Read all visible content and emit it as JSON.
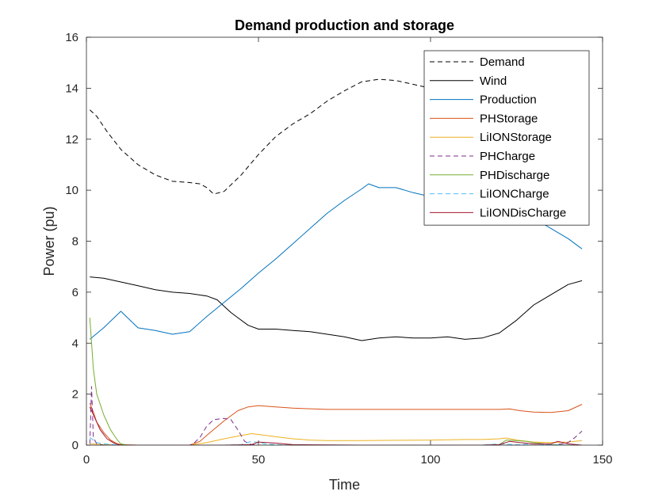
{
  "chart_data": {
    "type": "line",
    "title": "Demand production and storage",
    "xlabel": "Time",
    "ylabel": "Power (pu)",
    "xlim": [
      0,
      150
    ],
    "ylim": [
      0,
      16
    ],
    "xticks": [
      0,
      50,
      100,
      150
    ],
    "yticks": [
      0,
      2,
      4,
      6,
      8,
      10,
      12,
      14,
      16
    ],
    "grid": false,
    "legend_position": "top-right",
    "series": [
      {
        "name": "Demand",
        "color": "#000000",
        "dash": "dashed",
        "x": [
          1,
          3,
          6,
          10,
          15,
          20,
          25,
          30,
          33,
          35,
          37,
          40,
          45,
          50,
          55,
          60,
          65,
          70,
          75,
          80,
          85,
          90,
          95,
          100,
          105,
          110,
          115,
          120,
          125,
          130
        ],
        "y": [
          13.15,
          12.9,
          12.3,
          11.6,
          11.0,
          10.6,
          10.35,
          10.3,
          10.25,
          10.1,
          9.85,
          9.95,
          10.6,
          11.4,
          12.1,
          12.6,
          13.0,
          13.5,
          13.9,
          14.25,
          14.35,
          14.3,
          14.15,
          14.0,
          14.1,
          14.2,
          14.3,
          14.3,
          14.3,
          14.2
        ]
      },
      {
        "name": "Wind",
        "color": "#000000",
        "dash": "solid",
        "x": [
          1,
          5,
          10,
          15,
          20,
          25,
          30,
          35,
          38,
          40,
          42,
          44,
          47,
          50,
          55,
          60,
          65,
          70,
          75,
          80,
          85,
          90,
          95,
          100,
          105,
          110,
          115,
          120,
          125,
          130,
          135,
          140,
          144
        ],
        "y": [
          6.6,
          6.55,
          6.4,
          6.25,
          6.1,
          6.0,
          5.95,
          5.85,
          5.7,
          5.45,
          5.2,
          5.0,
          4.7,
          4.55,
          4.55,
          4.5,
          4.45,
          4.35,
          4.25,
          4.1,
          4.2,
          4.25,
          4.2,
          4.2,
          4.25,
          4.15,
          4.2,
          4.4,
          4.9,
          5.5,
          5.9,
          6.3,
          6.45
        ]
      },
      {
        "name": "Production",
        "color": "#0072BD",
        "dash": "solid",
        "x": [
          1,
          5,
          10,
          15,
          20,
          25,
          30,
          35,
          40,
          45,
          50,
          55,
          60,
          65,
          70,
          75,
          80,
          82,
          85,
          90,
          95,
          100,
          105,
          110,
          115,
          120,
          125,
          130,
          135,
          140,
          144
        ],
        "y": [
          4.15,
          4.6,
          5.25,
          4.6,
          4.5,
          4.35,
          4.45,
          5.05,
          5.6,
          6.15,
          6.75,
          7.3,
          7.9,
          8.5,
          9.1,
          9.6,
          10.05,
          10.25,
          10.1,
          10.1,
          9.9,
          9.75,
          9.7,
          9.65,
          9.6,
          9.55,
          9.3,
          8.9,
          8.5,
          8.1,
          7.7
        ]
      },
      {
        "name": "PHStorage",
        "color": "#D95319",
        "dash": "solid",
        "x": [
          1,
          2,
          3,
          5,
          7,
          9,
          10,
          15,
          20,
          25,
          30,
          33,
          36,
          40,
          44,
          47,
          50,
          55,
          60,
          70,
          80,
          90,
          100,
          110,
          120,
          123,
          126,
          130,
          135,
          140,
          144
        ],
        "y": [
          1.65,
          1.3,
          0.9,
          0.5,
          0.2,
          0.05,
          0.02,
          0.0,
          0.0,
          0.0,
          0.0,
          0.15,
          0.5,
          0.95,
          1.35,
          1.5,
          1.55,
          1.5,
          1.45,
          1.4,
          1.4,
          1.4,
          1.4,
          1.4,
          1.4,
          1.42,
          1.35,
          1.3,
          1.28,
          1.35,
          1.6
        ]
      },
      {
        "name": "LiIONStorage",
        "color": "#EDB120",
        "dash": "solid",
        "x": [
          1,
          5,
          10,
          20,
          30,
          35,
          40,
          45,
          48,
          50,
          55,
          60,
          65,
          70,
          80,
          90,
          100,
          110,
          115,
          120,
          122,
          125,
          130,
          135,
          140,
          144
        ],
        "y": [
          0.05,
          0.02,
          0.0,
          0.0,
          0.0,
          0.1,
          0.25,
          0.38,
          0.45,
          0.42,
          0.33,
          0.25,
          0.2,
          0.18,
          0.18,
          0.19,
          0.2,
          0.22,
          0.22,
          0.25,
          0.28,
          0.2,
          0.12,
          0.1,
          0.12,
          0.18
        ]
      },
      {
        "name": "PHCharge",
        "color": "#7E2F8E",
        "dash": "dashed",
        "x": [
          1,
          1.5,
          2,
          3,
          5,
          10,
          20,
          30,
          31,
          33,
          35,
          37,
          40,
          42,
          44,
          46,
          48,
          50,
          60,
          80,
          100,
          120,
          130,
          135,
          138,
          140,
          142,
          144
        ],
        "y": [
          0.05,
          2.3,
          0.3,
          0.05,
          0.0,
          0.0,
          0.0,
          0.0,
          0.05,
          0.3,
          0.75,
          1.0,
          1.05,
          1.0,
          0.6,
          0.15,
          0.02,
          0.0,
          0.0,
          0.0,
          0.0,
          0.0,
          0.0,
          0.0,
          0.05,
          0.1,
          0.3,
          0.55
        ]
      },
      {
        "name": "PHDischarge",
        "color": "#77AC30",
        "dash": "solid",
        "x": [
          1,
          2,
          3,
          4,
          5,
          6,
          7,
          8,
          9,
          10,
          12,
          20,
          30,
          40,
          50,
          80,
          100,
          115,
          120,
          122,
          125,
          128,
          130,
          135,
          140,
          144
        ],
        "y": [
          5.0,
          3.0,
          2.0,
          1.6,
          1.2,
          0.9,
          0.6,
          0.4,
          0.2,
          0.05,
          0.0,
          0.0,
          0.0,
          0.0,
          0.0,
          0.0,
          0.0,
          0.0,
          0.02,
          0.2,
          0.18,
          0.15,
          0.1,
          0.02,
          0.0,
          0.0
        ]
      },
      {
        "name": "LiIONCharge",
        "color": "#4DBEEE",
        "dash": "dashed",
        "x": [
          1,
          2,
          3,
          5,
          10,
          20,
          30,
          40,
          45,
          48,
          50,
          52,
          55,
          60,
          80,
          100,
          115,
          120,
          125,
          130,
          135,
          140,
          144
        ],
        "y": [
          0.3,
          0.2,
          0.1,
          0.05,
          0.0,
          0.0,
          0.0,
          0.0,
          0.02,
          0.15,
          0.1,
          0.05,
          0.02,
          0.0,
          0.0,
          0.0,
          0.0,
          0.05,
          0.02,
          0.05,
          0.02,
          0.0,
          0.0
        ]
      },
      {
        "name": "LiIONDisCharge",
        "color": "#A2142F",
        "dash": "solid",
        "x": [
          1,
          2,
          4,
          6,
          8,
          10,
          20,
          30,
          40,
          48,
          50,
          55,
          60,
          80,
          100,
          115,
          120,
          123,
          126,
          130,
          135,
          137,
          140,
          144
        ],
        "y": [
          1.5,
          1.2,
          0.6,
          0.25,
          0.08,
          0.0,
          0.0,
          0.0,
          0.0,
          0.02,
          0.12,
          0.08,
          0.02,
          0.0,
          0.0,
          0.0,
          0.02,
          0.15,
          0.1,
          0.05,
          0.05,
          0.15,
          0.05,
          0.0
        ]
      }
    ]
  }
}
